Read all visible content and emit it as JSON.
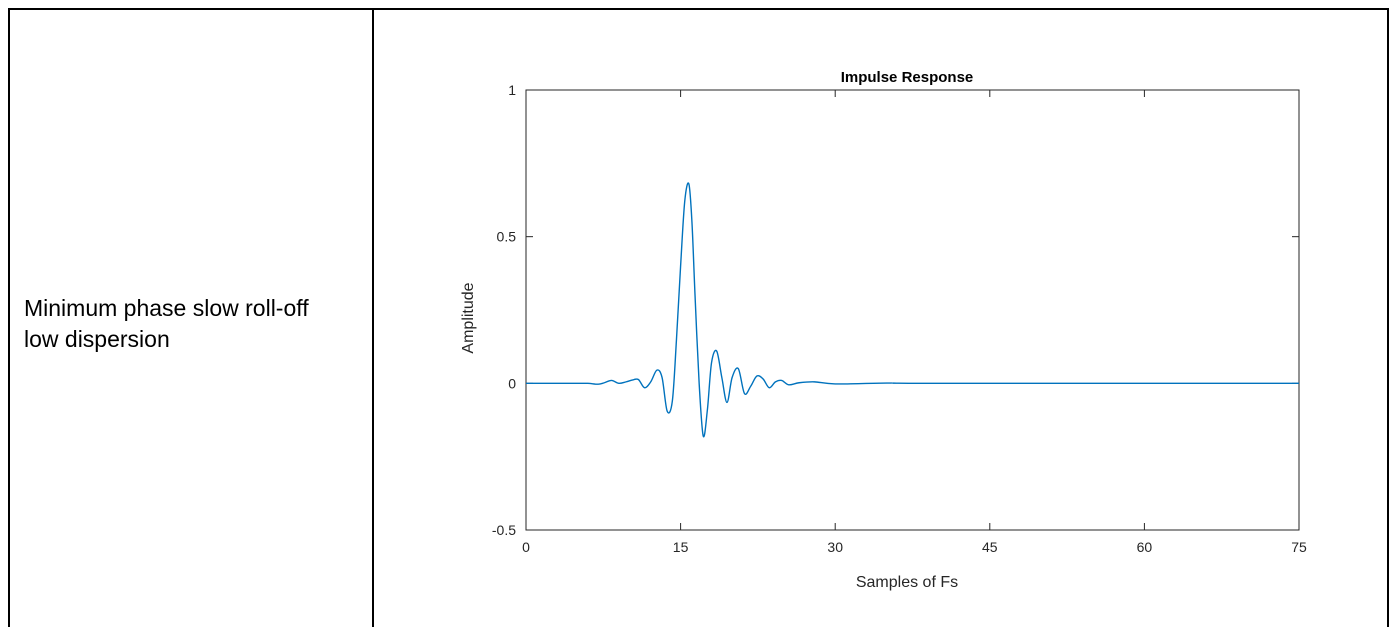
{
  "description_cell": {
    "line1": "Minimum phase slow roll-off",
    "line2": "low dispersion"
  },
  "chart_data": {
    "type": "line",
    "title": "Impulse Response",
    "xlabel": "Samples of Fs",
    "ylabel": "Amplitude",
    "xlim": [
      0,
      75
    ],
    "ylim": [
      -0.5,
      1
    ],
    "xticks": [
      0,
      15,
      30,
      45,
      60,
      75
    ],
    "yticks": [
      -0.5,
      0,
      0.5,
      1
    ],
    "grid": false,
    "series": [
      {
        "color": "#0072BD",
        "x": [
          0,
          5,
          6,
          7,
          7.6,
          8.3,
          9.0,
          9.7,
          10.3,
          10.9,
          11.5,
          12.1,
          12.7,
          13.2,
          13.7,
          14.2,
          14.6,
          15.0,
          15.4,
          15.8,
          16.1,
          16.4,
          16.8,
          17.2,
          17.6,
          18.0,
          18.5,
          19.0,
          19.5,
          20.0,
          20.6,
          21.2,
          21.8,
          22.4,
          23.0,
          23.6,
          24.2,
          24.8,
          25.5,
          26.5,
          28.0,
          30.0,
          35.0,
          40.0,
          75.0
        ],
        "y": [
          0,
          0,
          0,
          -0.003,
          0.002,
          0.01,
          0.0,
          0.005,
          0.011,
          0.013,
          -0.015,
          0.005,
          0.045,
          0.02,
          -0.095,
          -0.06,
          0.15,
          0.4,
          0.62,
          0.68,
          0.55,
          0.3,
          0.0,
          -0.18,
          -0.09,
          0.07,
          0.11,
          0.02,
          -0.065,
          0.02,
          0.05,
          -0.035,
          -0.01,
          0.025,
          0.015,
          -0.015,
          0.005,
          0.01,
          -0.005,
          0.002,
          0.005,
          -0.002,
          0.001,
          0.0,
          0.0
        ]
      }
    ]
  }
}
